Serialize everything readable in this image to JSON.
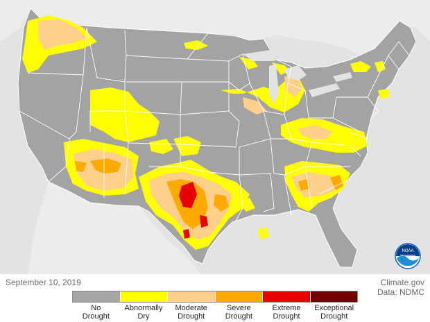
{
  "map": {
    "date": "September 10, 2019",
    "credit_site": "Climate.gov",
    "credit_data": "Data: NDMC",
    "logo_text": "NOAA",
    "colors": {
      "background": "#e3e3e3",
      "land": "#a3a3a3",
      "no_drought": "#a6a6a6",
      "abnormally_dry": "#ffff00",
      "moderate": "#fccf8a",
      "severe": "#ffaa00",
      "extreme": "#e60000",
      "exceptional": "#730000",
      "borders": "#ffffff",
      "logo_blue": "#0a4d9c"
    }
  },
  "legend": {
    "items": [
      {
        "label_line1": "No",
        "label_line2": "Drought",
        "color": "#a6a6a6"
      },
      {
        "label_line1": "Abnormally",
        "label_line2": "Dry",
        "color": "#ffff00"
      },
      {
        "label_line1": "Moderate",
        "label_line2": "Drought",
        "color": "#fccf8a"
      },
      {
        "label_line1": "Severe",
        "label_line2": "Drought",
        "color": "#ffaa00"
      },
      {
        "label_line1": "Extreme",
        "label_line2": "Drought",
        "color": "#e60000"
      },
      {
        "label_line1": "Exceptional",
        "label_line2": "Drought",
        "color": "#730000"
      }
    ]
  }
}
